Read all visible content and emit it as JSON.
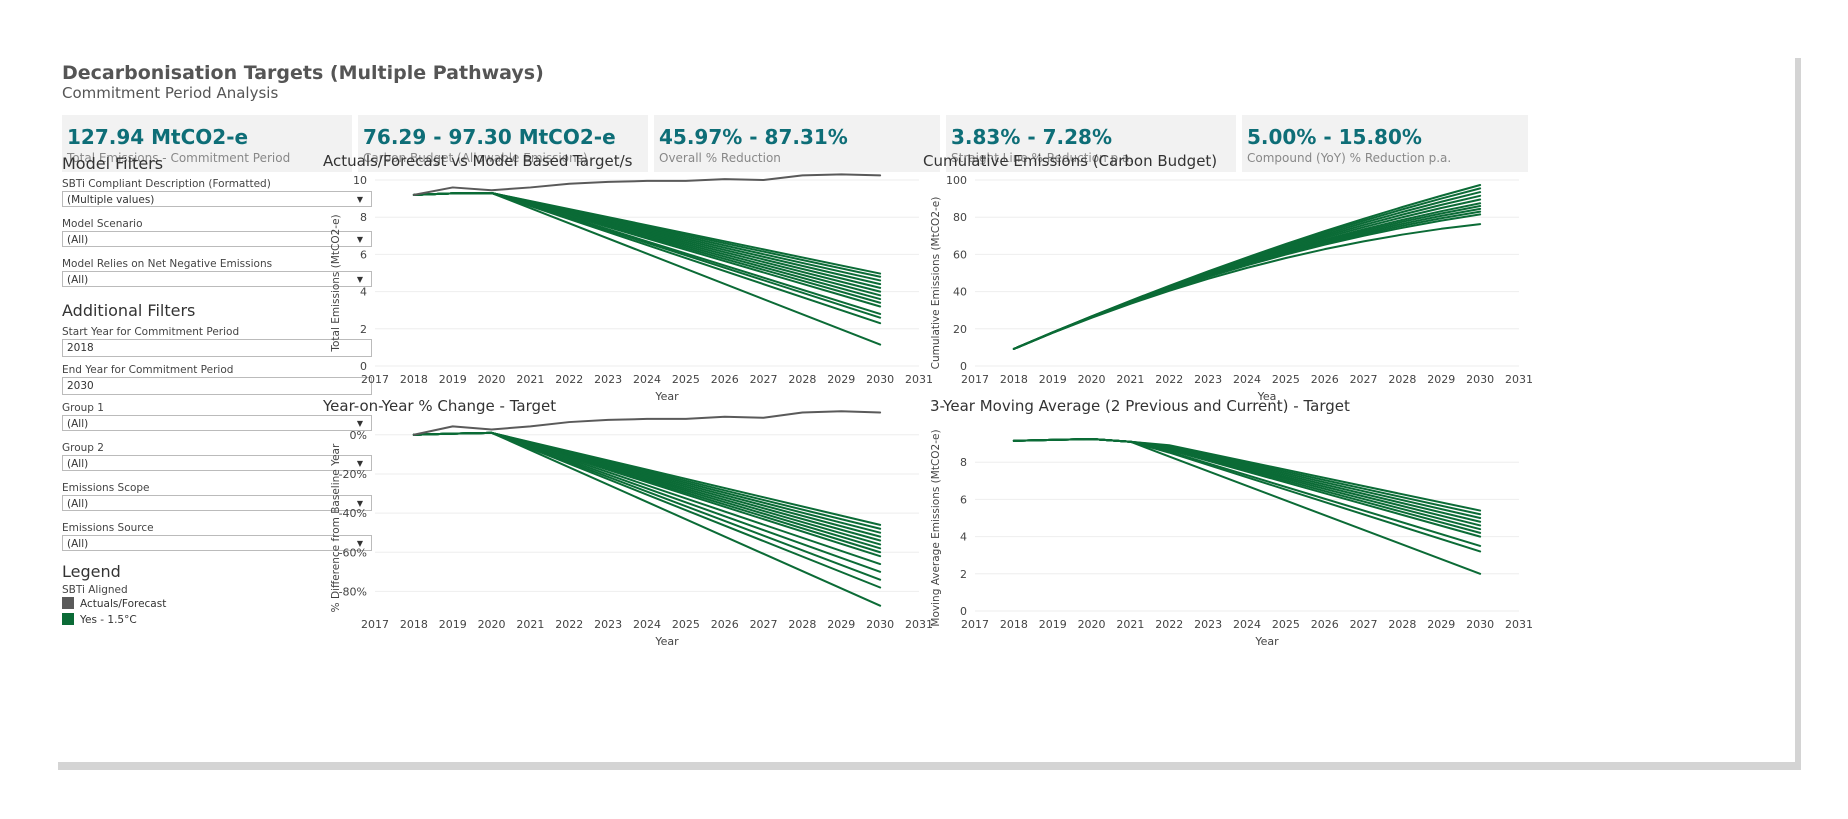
{
  "header": {
    "title": "Decarbonisation Targets (Multiple Pathways)",
    "subtitle": "Commitment Period Analysis"
  },
  "kpis": [
    {
      "value": "127.94 MtCO2-e",
      "label": "Total Emissions - Commitment Period"
    },
    {
      "value": "76.29 - 97.30 MtCO2-e",
      "label": "Carbon Budget (Allowable Emissions)"
    },
    {
      "value": "45.97% - 87.31%",
      "label": "Overall % Reduction"
    },
    {
      "value": "3.83% - 7.28%",
      "label": "Straight Line % Reduction p.a."
    },
    {
      "value": "5.00% - 15.80%",
      "label": "Compound (YoY) % Reduction p.a."
    }
  ],
  "model_filters": {
    "heading": "Model Filters",
    "sbti": {
      "label": "SBTi Compliant Description (Formatted)",
      "value": "(Multiple values)"
    },
    "scenario": {
      "label": "Model Scenario",
      "value": "(All)"
    },
    "negative": {
      "label": "Model Relies on Net Negative Emissions",
      "value": "(All)"
    }
  },
  "additional_filters": {
    "heading": "Additional Filters",
    "start_year": {
      "label": "Start Year for Commitment Period",
      "value": "2018"
    },
    "end_year": {
      "label": "End Year for Commitment Period",
      "value": "2030"
    },
    "group1": {
      "label": "Group 1",
      "value": "(All)"
    },
    "group2": {
      "label": "Group 2",
      "value": "(All)"
    },
    "scope": {
      "label": "Emissions Scope",
      "value": "(All)"
    },
    "source": {
      "label": "Emissions Source",
      "value": "(All)"
    }
  },
  "legend": {
    "heading": "Legend",
    "title": "SBTi Aligned",
    "items": [
      {
        "label": "Actuals/Forecast",
        "color": "#5a5a5a"
      },
      {
        "label": "Yes - 1.5°C",
        "color": "#0b6b36"
      }
    ]
  },
  "colors": {
    "actuals": "#5a5a5a",
    "target": "#0b6b36",
    "accent": "#0e6e77"
  },
  "chart_data": [
    {
      "type": "line",
      "title": "Actuals/Forecast vs Model Based Target/s",
      "xlabel": "Year",
      "ylabel": "Total Emissions (MtCO2-e)",
      "xlim": [
        2017,
        2031
      ],
      "ylim": [
        0,
        10
      ],
      "x_ticks": [
        "2017",
        "2018",
        "2019",
        "2020",
        "2021",
        "2022",
        "2023",
        "2024",
        "2025",
        "2026",
        "2027",
        "2028",
        "2029",
        "2030",
        "2031"
      ],
      "y_ticks": [
        "0",
        "2",
        "4",
        "6",
        "8",
        "10"
      ],
      "grid": "horizontal",
      "actuals": {
        "x": [
          2018,
          2019,
          2020,
          2021,
          2022,
          2023,
          2024,
          2025,
          2026,
          2027,
          2028,
          2029,
          2030
        ],
        "values": [
          9.2,
          9.6,
          9.45,
          9.6,
          9.8,
          9.9,
          9.95,
          9.95,
          10.05,
          10.0,
          10.25,
          10.3,
          10.25
        ]
      },
      "targets": {
        "x": [
          2018,
          2019,
          2020,
          2030
        ],
        "start": [
          9.2,
          9.3,
          9.3
        ],
        "end_values": [
          4.97,
          4.8,
          4.6,
          4.4,
          4.2,
          4.0,
          3.8,
          3.6,
          3.4,
          3.2,
          2.8,
          2.6,
          2.3,
          1.15
        ]
      }
    },
    {
      "type": "line",
      "title": "Cumulative Emissions (Carbon Budget)",
      "xlabel": "Yea",
      "ylabel": "Cumulative Emissions (MtCO2-e)",
      "xlim": [
        2017,
        2031
      ],
      "ylim": [
        0,
        100
      ],
      "x_ticks": [
        "2017",
        "2018",
        "2019",
        "2020",
        "2021",
        "2022",
        "2023",
        "2024",
        "2025",
        "2026",
        "2027",
        "2028",
        "2029",
        "2030",
        "2031"
      ],
      "y_ticks": [
        "0",
        "20",
        "40",
        "60",
        "80",
        "100"
      ],
      "grid": "horizontal",
      "cumulative_end": [
        97.3,
        95.5,
        93.5,
        91.5,
        89.5,
        87.5,
        86,
        84.5,
        83,
        81.5,
        76.3
      ]
    },
    {
      "type": "line",
      "title": "Year-on-Year % Change - Target",
      "xlabel": "Year",
      "ylabel": "% Difference from Baseline Year",
      "xlim": [
        2017,
        2031
      ],
      "ylim": [
        -90,
        5
      ],
      "x_ticks": [
        "2017",
        "2018",
        "2019",
        "2020",
        "2021",
        "2022",
        "2023",
        "2024",
        "2025",
        "2026",
        "2027",
        "2028",
        "2029",
        "2030",
        "2031"
      ],
      "y_ticks": [
        "0%",
        "-20%",
        "-40%",
        "-60%",
        "-80%"
      ],
      "grid": "horizontal",
      "actuals": {
        "x": [
          2018,
          2019,
          2020,
          2021,
          2022,
          2023,
          2024,
          2025,
          2026,
          2027,
          2028,
          2029,
          2030
        ],
        "values": [
          0,
          4.3,
          2.7,
          4.3,
          6.5,
          7.6,
          8.1,
          8.1,
          9.2,
          8.7,
          11.4,
          12.0,
          11.4
        ]
      },
      "targets_end": [
        -46,
        -48,
        -50,
        -52,
        -54,
        -56,
        -58,
        -60,
        -62,
        -66,
        -70,
        -74,
        -78,
        -87.3
      ]
    },
    {
      "type": "line",
      "title": "3-Year Moving Average (2 Previous and Current) - Target",
      "xlabel": "Year",
      "ylabel": "Moving Average Emissions (MtCO2-e)",
      "xlim": [
        2017,
        2031
      ],
      "ylim": [
        0,
        10
      ],
      "x_ticks": [
        "2017",
        "2018",
        "2019",
        "2020",
        "2021",
        "2022",
        "2023",
        "2024",
        "2025",
        "2026",
        "2027",
        "2028",
        "2029",
        "2030",
        "2031"
      ],
      "y_ticks": [
        "0",
        "2",
        "4",
        "6",
        "8"
      ],
      "grid": "horizontal",
      "ma_end": [
        5.4,
        5.2,
        5.0,
        4.8,
        4.6,
        4.4,
        4.2,
        4.0,
        3.5,
        3.2,
        2.0
      ]
    }
  ]
}
